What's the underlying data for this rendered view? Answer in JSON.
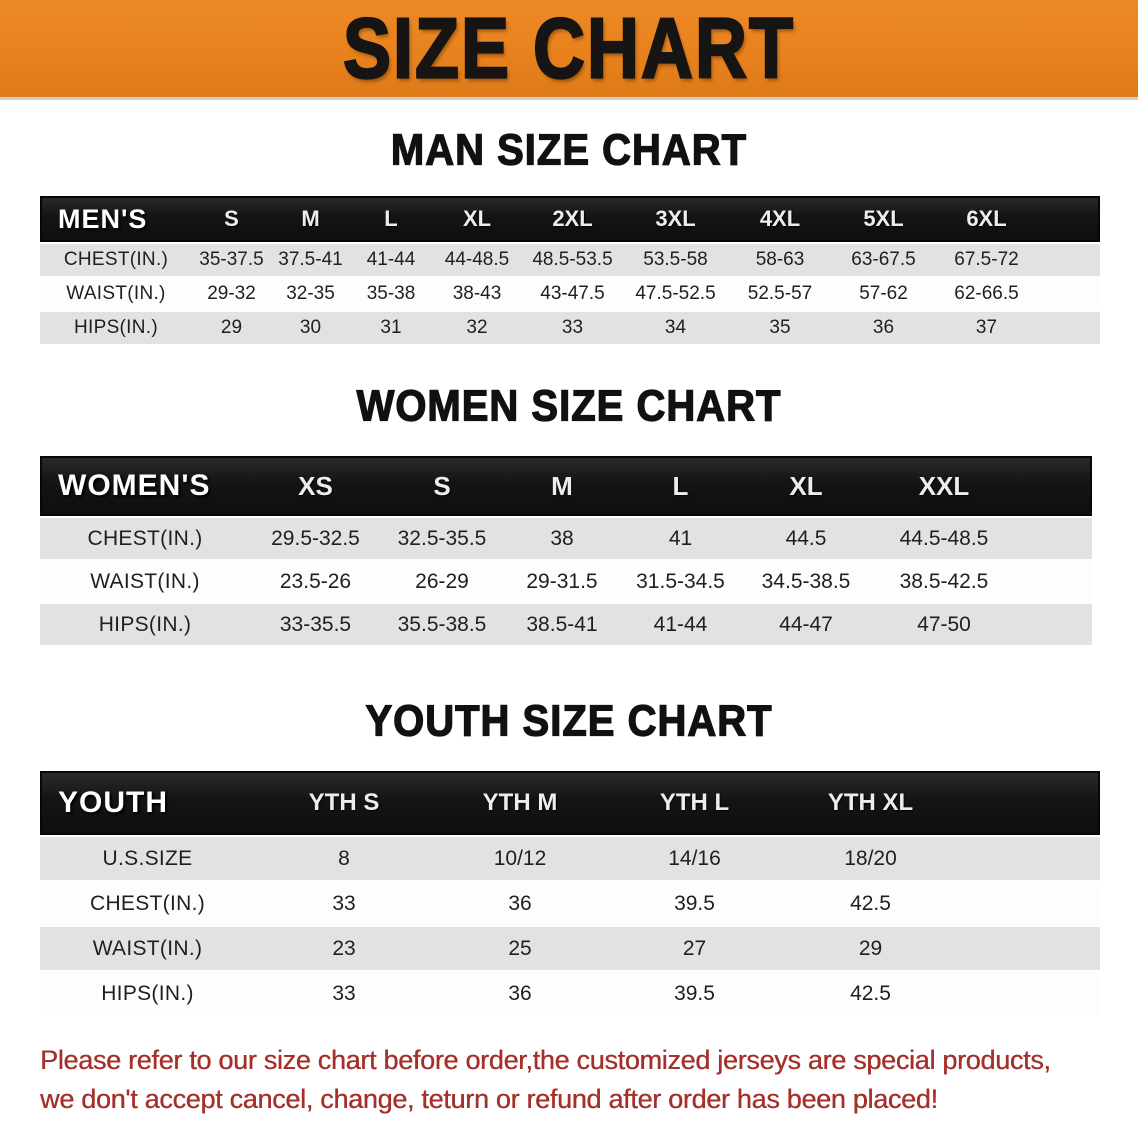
{
  "banner": {
    "title": "SIZE CHART",
    "bg_color": "#E8821E"
  },
  "colors": {
    "banner_bg": "#E8821E",
    "table_header_bg": "#141414",
    "row_gray": "#E2E2E4",
    "row_white": "#FDFDFD",
    "disclaimer_red": "#A5302B"
  },
  "sections": [
    {
      "id": "men",
      "heading": "MAN SIZE CHART",
      "corner_label": "MEN'S",
      "columns": [
        "S",
        "M",
        "L",
        "XL",
        "2XL",
        "3XL",
        "4XL",
        "5XL",
        "6XL"
      ],
      "rows": [
        {
          "label": "CHEST(IN.)",
          "values": [
            "35-37.5",
            "37.5-41",
            "41-44",
            "44-48.5",
            "48.5-53.5",
            "53.5-58",
            "58-63",
            "63-67.5",
            "67.5-72"
          ]
        },
        {
          "label": "WAIST(IN.)",
          "values": [
            "29-32",
            "32-35",
            "35-38",
            "38-43",
            "43-47.5",
            "47.5-52.5",
            "52.5-57",
            "57-62",
            "62-66.5"
          ]
        },
        {
          "label": "HIPS(IN.)",
          "values": [
            "29",
            "30",
            "31",
            "32",
            "33",
            "34",
            "35",
            "36",
            "37"
          ]
        }
      ]
    },
    {
      "id": "women",
      "heading": "WOMEN SIZE CHART",
      "corner_label": "WOMEN'S",
      "columns": [
        "XS",
        "S",
        "M",
        "L",
        "XL",
        "XXL"
      ],
      "rows": [
        {
          "label": "CHEST(IN.)",
          "values": [
            "29.5-32.5",
            "32.5-35.5",
            "38",
            "41",
            "44.5",
            "44.5-48.5"
          ]
        },
        {
          "label": "WAIST(IN.)",
          "values": [
            "23.5-26",
            "26-29",
            "29-31.5",
            "31.5-34.5",
            "34.5-38.5",
            "38.5-42.5"
          ]
        },
        {
          "label": "HIPS(IN.)",
          "values": [
            "33-35.5",
            "35.5-38.5",
            "38.5-41",
            "41-44",
            "44-47",
            "47-50"
          ]
        }
      ]
    },
    {
      "id": "youth",
      "heading": "YOUTH SIZE CHART",
      "corner_label": "YOUTH",
      "columns": [
        "YTH S",
        "YTH M",
        "YTH L",
        "YTH XL"
      ],
      "rows": [
        {
          "label": "U.S.SIZE",
          "values": [
            "8",
            "10/12",
            "14/16",
            "18/20"
          ]
        },
        {
          "label": "CHEST(IN.)",
          "values": [
            "33",
            "36",
            "39.5",
            "42.5"
          ]
        },
        {
          "label": "WAIST(IN.)",
          "values": [
            "23",
            "25",
            "27",
            "29"
          ]
        },
        {
          "label": "HIPS(IN.)",
          "values": [
            "33",
            "36",
            "39.5",
            "42.5"
          ]
        }
      ]
    }
  ],
  "disclaimer": {
    "line1": "Please refer to our size chart before order,the customized jerseys are special products,",
    "line2": "we don't accept cancel, change, teturn or refund after order has been placed!"
  }
}
